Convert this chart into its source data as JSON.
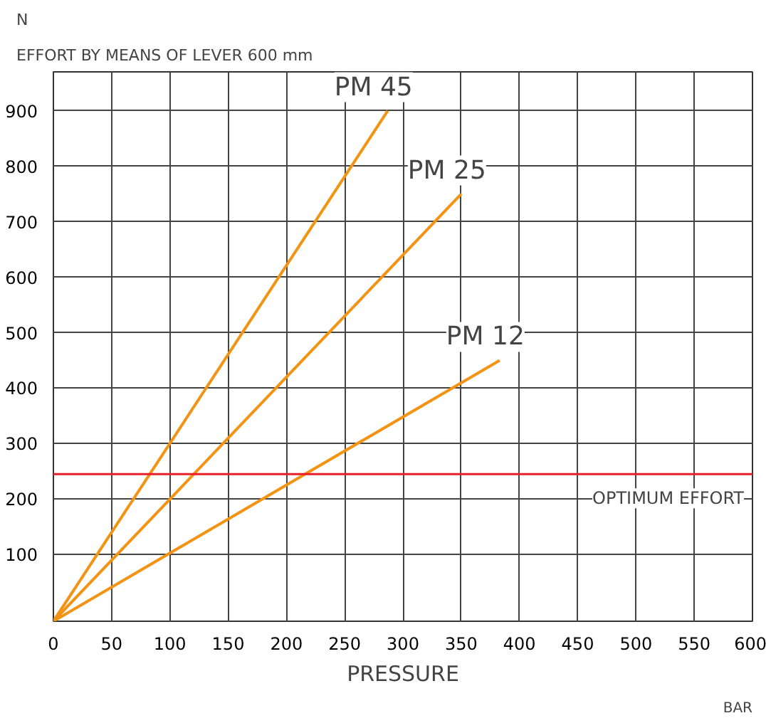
{
  "chart_data": {
    "type": "line",
    "title": "EFFORT BY MEANS OF LEVER 600 mm",
    "xlabel": "PRESSURE",
    "ylabel": "N",
    "annotations": [
      "BAR"
    ],
    "xlim": [
      0,
      600
    ],
    "ylim": [
      -20,
      970
    ],
    "xticks": [
      0,
      50,
      100,
      150,
      200,
      250,
      300,
      350,
      400,
      450,
      500,
      550,
      600
    ],
    "yticks": [
      100,
      200,
      300,
      400,
      500,
      600,
      700,
      800,
      900
    ],
    "grid": true,
    "marker": "none",
    "line_style": "solid",
    "series": [
      {
        "name": "PM 45",
        "color": "#f39314",
        "x": [
          0,
          287
        ],
        "values": [
          -20,
          900
        ]
      },
      {
        "name": "PM 25",
        "color": "#f39314",
        "x": [
          0,
          350
        ],
        "values": [
          -20,
          750
        ]
      },
      {
        "name": "PM 12",
        "color": "#f39314",
        "x": [
          0,
          383
        ],
        "values": [
          -20,
          450
        ]
      }
    ],
    "ref_lines": [
      {
        "axis": "y",
        "value": 245,
        "label": "OPTIMUM EFFORT",
        "color": "#e8202a",
        "line_style": "solid"
      }
    ]
  }
}
